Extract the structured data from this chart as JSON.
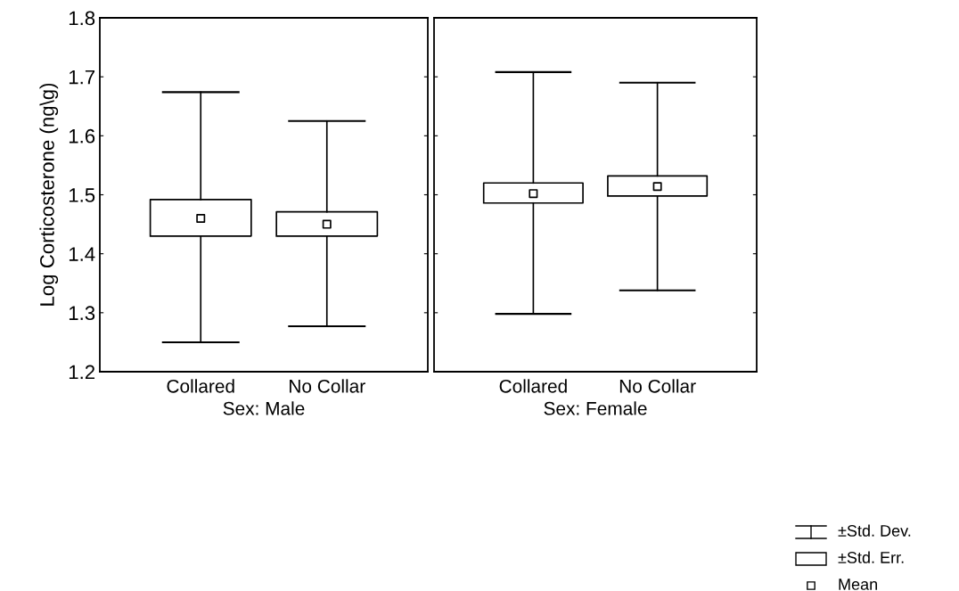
{
  "chart_data": [
    {
      "type": "box",
      "categories": [
        "Collared",
        "No Collar"
      ],
      "xlabel": "Sex: Male",
      "ylabel": "Log Corticosterone (ng\\g)",
      "ylim": [
        1.2,
        1.8
      ],
      "yticks": [
        1.2,
        1.3,
        1.4,
        1.5,
        1.6,
        1.7,
        1.8
      ],
      "color": "#000000",
      "boxes": [
        {
          "low": 1.25,
          "q1": 1.43,
          "q3": 1.492,
          "high": 1.674,
          "mean": 1.46
        },
        {
          "low": 1.277,
          "q1": 1.43,
          "q3": 1.471,
          "high": 1.625,
          "mean": 1.45
        }
      ],
      "marker": "square"
    },
    {
      "type": "box",
      "categories": [
        "Collared",
        "No Collar"
      ],
      "xlabel": "Sex: Female",
      "ylim": [
        1.2,
        1.8
      ],
      "yticks": [
        1.2,
        1.3,
        1.4,
        1.5,
        1.6,
        1.7,
        1.8
      ],
      "tick_labels": "x",
      "color": "#000000",
      "boxes": [
        {
          "low": 1.298,
          "q1": 1.486,
          "q3": 1.52,
          "high": 1.708,
          "mean": 1.502
        },
        {
          "low": 1.338,
          "q1": 1.498,
          "q3": 1.532,
          "high": 1.69,
          "mean": 1.514
        }
      ],
      "marker": "square",
      "annotations": [
        "±Std. Dev.",
        "±Std. Err.",
        "Mean"
      ]
    }
  ]
}
